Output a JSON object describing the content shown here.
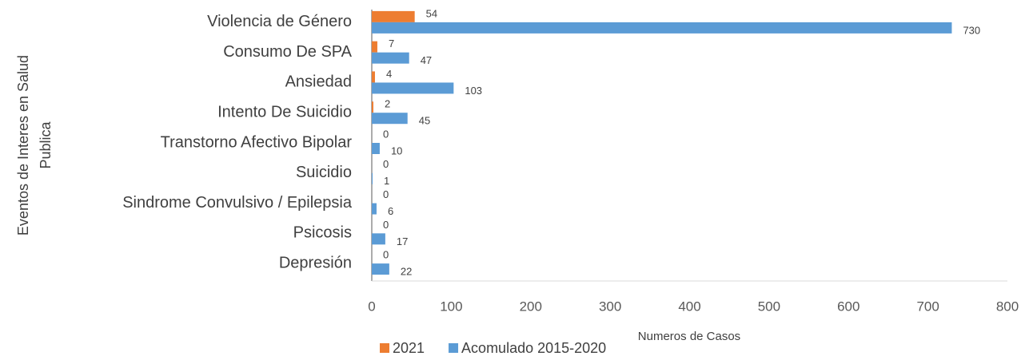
{
  "chart_data": {
    "type": "hbar",
    "x_label": "Numeros de Casos",
    "y_label": [
      "Eventos de Interes en Salud",
      "Publica"
    ],
    "categories": [
      "Violencia de Género",
      "Consumo De SPA",
      "Ansiedad",
      "Intento De Suicidio",
      "Transtorno Afectivo Bipolar",
      "Suicidio",
      "Sindrome Convulsivo / Epilepsia",
      "Psicosis",
      "Depresión"
    ],
    "series": [
      {
        "name": "2021",
        "color": "#ed7d31",
        "values": [
          54,
          7,
          4,
          2,
          0,
          0,
          0,
          0,
          0
        ]
      },
      {
        "name": "Acomulado 2015-2020",
        "color": "#5b9bd5",
        "values": [
          730,
          47,
          103,
          45,
          10,
          1,
          6,
          17,
          22
        ]
      }
    ],
    "xlim": [
      0,
      800
    ],
    "xticks": [
      0,
      100,
      200,
      300,
      400,
      500,
      600,
      700,
      800
    ],
    "grid": false,
    "legend": "bottom"
  }
}
